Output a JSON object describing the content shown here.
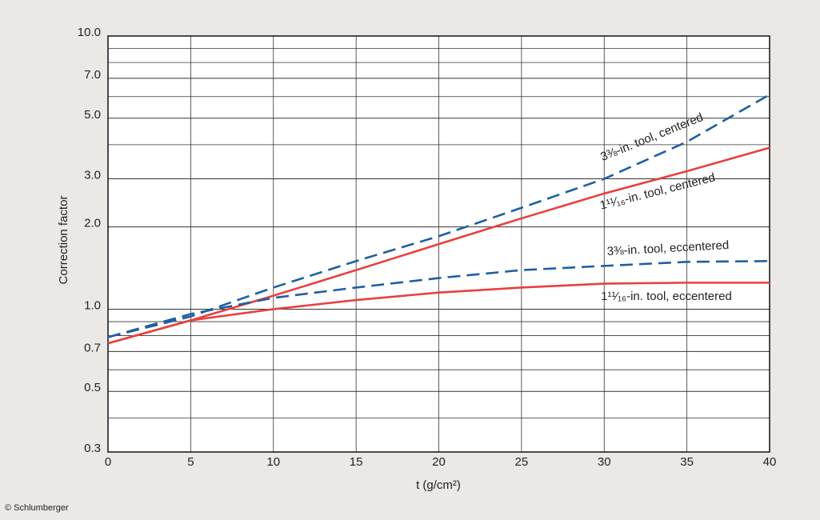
{
  "chart_data": {
    "type": "line",
    "y_label": "Correction factor",
    "x_label": "t (g/cm²)",
    "credit": "© Schlumberger",
    "x": [
      0,
      5,
      10,
      15,
      20,
      25,
      30,
      35,
      40
    ],
    "xlim": [
      0,
      40
    ],
    "xticks": [
      0,
      5,
      10,
      15,
      20,
      25,
      30,
      35,
      40
    ],
    "ylim": [
      0.3,
      10
    ],
    "log_y": true,
    "grid": true,
    "yticks": [
      {
        "value": 10,
        "label": "10.0"
      },
      {
        "value": 7,
        "label": "7.0"
      },
      {
        "value": 5,
        "label": "5.0"
      },
      {
        "value": 3,
        "label": "3.0"
      },
      {
        "value": 2,
        "label": "2.0"
      },
      {
        "value": 1,
        "label": "1.0"
      },
      {
        "value": 0.7,
        "label": "0.7"
      },
      {
        "value": 0.5,
        "label": "0.5"
      },
      {
        "value": 0.3,
        "label": "0.3"
      }
    ],
    "minor_yticks": [
      9,
      8,
      6,
      4,
      0.9,
      0.8,
      0.6,
      0.4
    ],
    "series": [
      {
        "name": "3⅜-in. tool, centered",
        "color": "#1f5fa0",
        "dashed": true,
        "values": [
          0.79,
          0.94,
          1.2,
          1.5,
          1.85,
          2.35,
          3.0,
          4.1,
          6.1
        ]
      },
      {
        "name": "1¹¹⁄₁₆-in. tool, centered",
        "color": "#e8403f",
        "dashed": false,
        "values": [
          0.75,
          0.91,
          1.12,
          1.39,
          1.73,
          2.15,
          2.65,
          3.2,
          3.9
        ]
      },
      {
        "name": "3⅜-in. tool, eccentered",
        "color": "#1f5fa0",
        "dashed": true,
        "values": [
          0.79,
          0.96,
          1.1,
          1.2,
          1.3,
          1.39,
          1.44,
          1.49,
          1.5
        ]
      },
      {
        "name": "1¹¹⁄₁₆-in. tool, eccentered",
        "color": "#e8403f",
        "dashed": false,
        "values": [
          0.75,
          0.91,
          1.0,
          1.08,
          1.15,
          1.2,
          1.24,
          1.25,
          1.25
        ]
      }
    ]
  }
}
